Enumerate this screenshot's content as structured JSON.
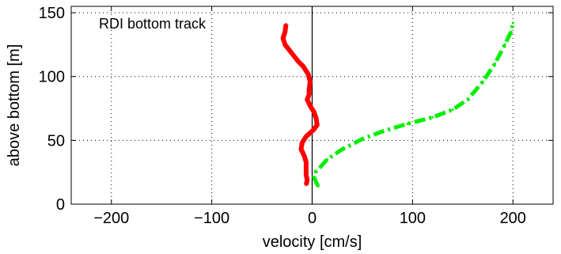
{
  "chart_data": {
    "type": "line",
    "annotation": "RDI bottom track",
    "xlabel": "velocity [cm/s]",
    "ylabel": "above bottom [m]",
    "xlim": [
      -240,
      240
    ],
    "ylim": [
      0,
      155
    ],
    "xticks": [
      -200,
      -100,
      0,
      100,
      200
    ],
    "xtick_labels": [
      "−200",
      "−100",
      "0",
      "100",
      "200"
    ],
    "yticks": [
      0,
      50,
      100,
      150
    ],
    "ytick_labels": [
      "0",
      "50",
      "100",
      "150"
    ],
    "grid": true,
    "zero_line": 0,
    "legend": "none",
    "series": [
      {
        "color": "#ff0000",
        "style": "solid",
        "points": [
          [
            -26,
            141
          ],
          [
            -27,
            135
          ],
          [
            -29,
            130
          ],
          [
            -27,
            125
          ],
          [
            -20,
            118
          ],
          [
            -14,
            112
          ],
          [
            -9,
            108
          ],
          [
            -4,
            102
          ],
          [
            -2,
            96
          ],
          [
            -3,
            90
          ],
          [
            -3,
            86
          ],
          [
            -5,
            82
          ],
          [
            -2,
            77
          ],
          [
            2,
            72
          ],
          [
            4,
            67
          ],
          [
            5,
            62
          ],
          [
            1,
            58
          ],
          [
            -6,
            53
          ],
          [
            -10,
            48
          ],
          [
            -11,
            43
          ],
          [
            -8,
            38
          ],
          [
            -6,
            33
          ],
          [
            -6,
            28
          ],
          [
            -6,
            23
          ],
          [
            -5,
            19
          ],
          [
            -6,
            15
          ]
        ]
      },
      {
        "color": "#00ee00",
        "style": "dashdot",
        "points": [
          [
            6,
            14
          ],
          [
            4,
            17
          ],
          [
            2,
            21
          ],
          [
            3,
            25
          ],
          [
            8,
            29
          ],
          [
            15,
            35
          ],
          [
            30,
            43
          ],
          [
            50,
            51
          ],
          [
            70,
            57
          ],
          [
            95,
            63
          ],
          [
            120,
            68
          ],
          [
            140,
            74
          ],
          [
            155,
            82
          ],
          [
            170,
            96
          ],
          [
            182,
            110
          ],
          [
            192,
            125
          ],
          [
            198,
            135
          ],
          [
            200,
            142
          ]
        ]
      }
    ]
  }
}
